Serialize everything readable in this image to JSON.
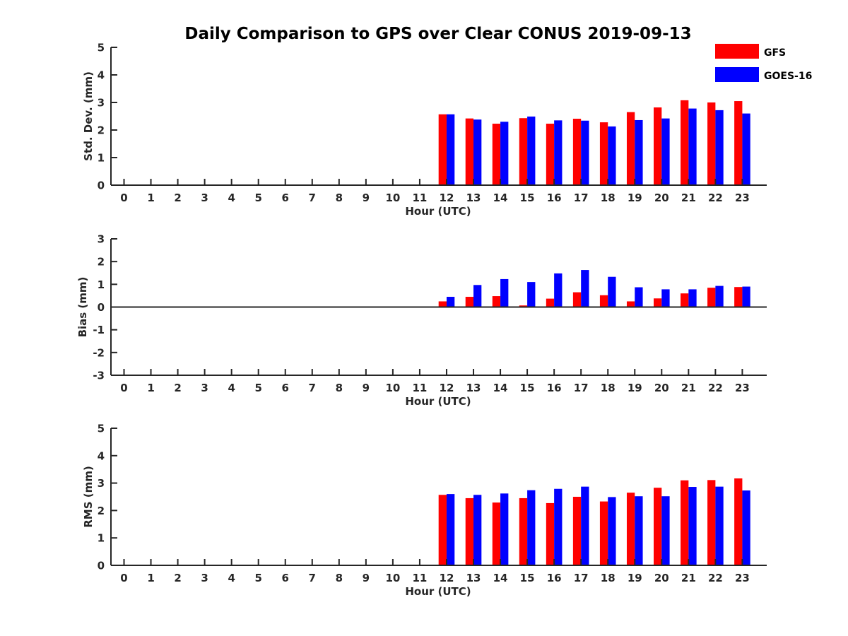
{
  "title": "Daily Comparison to GPS over Clear CONUS 2019-09-13",
  "colors": {
    "gfs": "#ff0000",
    "goes": "#0000ff",
    "axis": "#262626"
  },
  "legend": [
    {
      "name": "GFS",
      "color": "#ff0000"
    },
    {
      "name": "GOES-16",
      "color": "#0000ff"
    }
  ],
  "chart_data": [
    {
      "type": "bar",
      "title": "Daily Comparison to GPS over Clear CONUS 2019-09-13",
      "xlabel": "Hour (UTC)",
      "ylabel": "Std. Dev. (mm)",
      "ylim": [
        0,
        5
      ],
      "yticks": [
        0,
        1,
        2,
        3,
        4,
        5
      ],
      "categories": [
        "0",
        "1",
        "2",
        "3",
        "4",
        "5",
        "6",
        "7",
        "8",
        "9",
        "10",
        "11",
        "12",
        "13",
        "14",
        "15",
        "16",
        "17",
        "18",
        "19",
        "20",
        "21",
        "22",
        "23"
      ],
      "series": [
        {
          "name": "GFS",
          "values": [
            null,
            null,
            null,
            null,
            null,
            null,
            null,
            null,
            null,
            null,
            null,
            null,
            2.57,
            2.42,
            2.23,
            2.43,
            2.23,
            2.41,
            2.28,
            2.65,
            2.82,
            3.08,
            3.0,
            3.05
          ]
        },
        {
          "name": "GOES-16",
          "values": [
            null,
            null,
            null,
            null,
            null,
            null,
            null,
            null,
            null,
            null,
            null,
            null,
            2.57,
            2.38,
            2.3,
            2.49,
            2.35,
            2.34,
            2.13,
            2.36,
            2.42,
            2.78,
            2.72,
            2.6
          ]
        }
      ],
      "legend": "top-right"
    },
    {
      "type": "bar",
      "xlabel": "Hour (UTC)",
      "ylabel": "Bias (mm)",
      "ylim": [
        -3,
        3
      ],
      "yticks": [
        -3,
        -2,
        -1,
        0,
        1,
        2,
        3
      ],
      "zero_line": true,
      "categories": [
        "0",
        "1",
        "2",
        "3",
        "4",
        "5",
        "6",
        "7",
        "8",
        "9",
        "10",
        "11",
        "12",
        "13",
        "14",
        "15",
        "16",
        "17",
        "18",
        "19",
        "20",
        "21",
        "22",
        "23"
      ],
      "series": [
        {
          "name": "GFS",
          "values": [
            null,
            null,
            null,
            null,
            null,
            null,
            null,
            null,
            null,
            null,
            null,
            null,
            0.25,
            0.45,
            0.48,
            0.07,
            0.37,
            0.65,
            0.52,
            0.25,
            0.38,
            0.6,
            0.85,
            0.88
          ]
        },
        {
          "name": "GOES-16",
          "values": [
            null,
            null,
            null,
            null,
            null,
            null,
            null,
            null,
            null,
            null,
            null,
            null,
            0.45,
            0.97,
            1.23,
            1.1,
            1.48,
            1.63,
            1.33,
            0.87,
            0.78,
            0.78,
            0.93,
            0.9
          ]
        }
      ]
    },
    {
      "type": "bar",
      "xlabel": "Hour (UTC)",
      "ylabel": "RMS (mm)",
      "ylim": [
        0,
        5
      ],
      "yticks": [
        0,
        1,
        2,
        3,
        4,
        5
      ],
      "categories": [
        "0",
        "1",
        "2",
        "3",
        "4",
        "5",
        "6",
        "7",
        "8",
        "9",
        "10",
        "11",
        "12",
        "13",
        "14",
        "15",
        "16",
        "17",
        "18",
        "19",
        "20",
        "21",
        "22",
        "23"
      ],
      "series": [
        {
          "name": "GFS",
          "values": [
            null,
            null,
            null,
            null,
            null,
            null,
            null,
            null,
            null,
            null,
            null,
            null,
            2.57,
            2.45,
            2.29,
            2.45,
            2.27,
            2.5,
            2.33,
            2.65,
            2.83,
            3.1,
            3.11,
            3.17
          ]
        },
        {
          "name": "GOES-16",
          "values": [
            null,
            null,
            null,
            null,
            null,
            null,
            null,
            null,
            null,
            null,
            null,
            null,
            2.6,
            2.57,
            2.62,
            2.74,
            2.79,
            2.87,
            2.49,
            2.52,
            2.52,
            2.86,
            2.87,
            2.73
          ]
        }
      ]
    }
  ]
}
